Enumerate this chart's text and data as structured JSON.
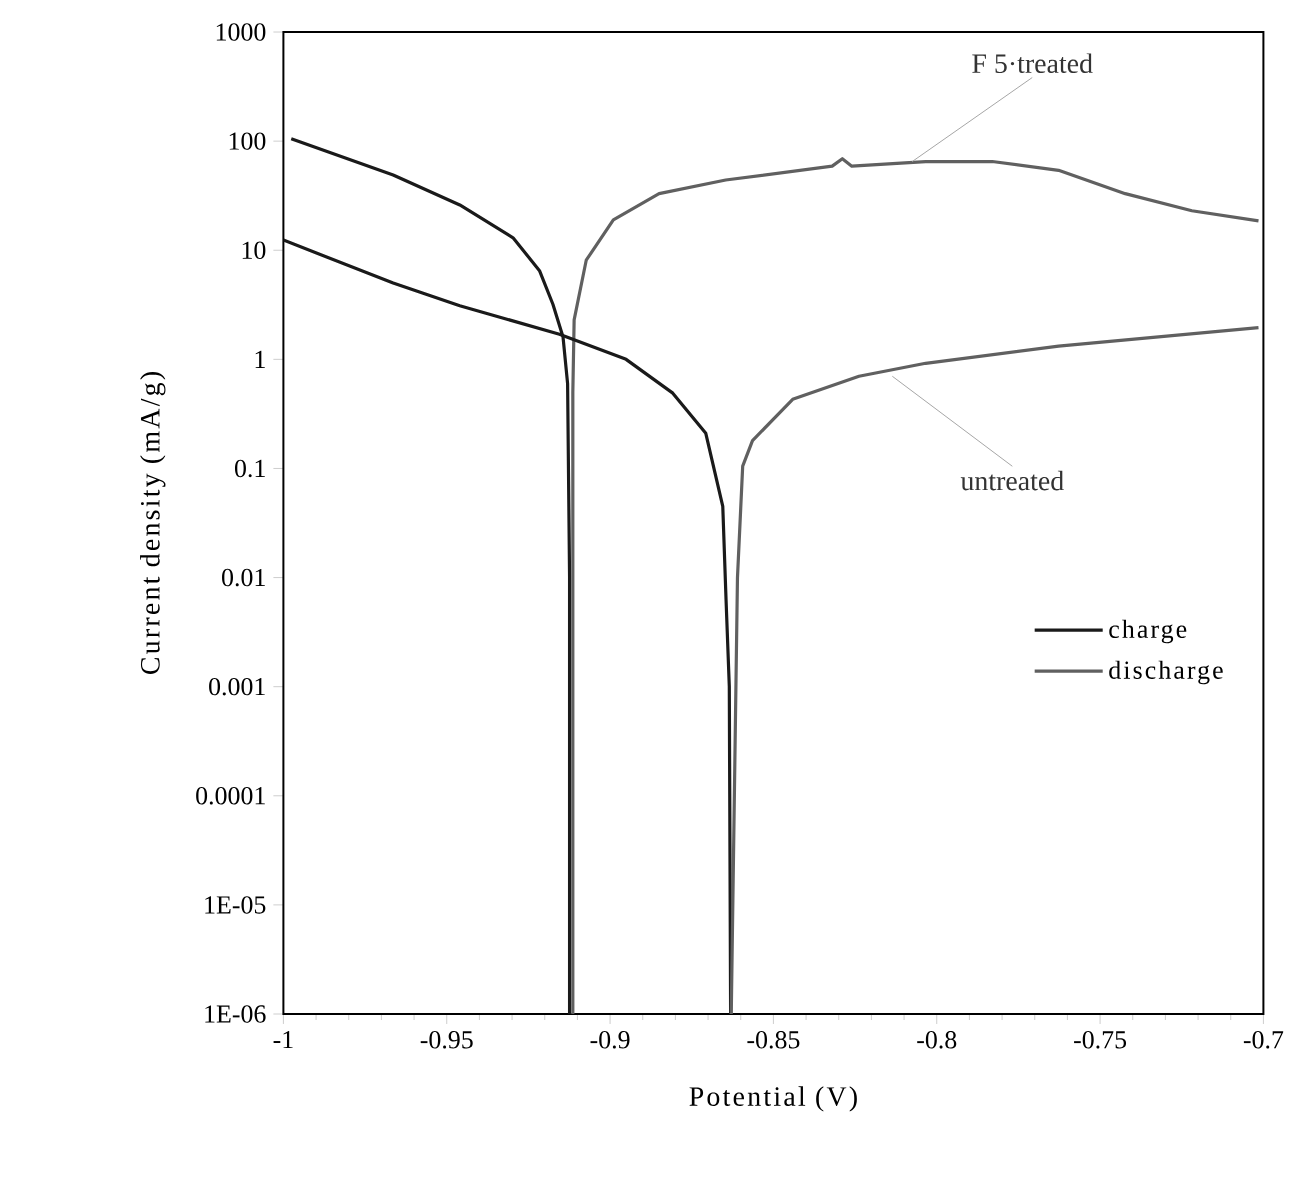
{
  "chart_data": {
    "type": "line",
    "xlabel": "Potential (V)",
    "ylabel": "Current density (mA/g)",
    "log": "y",
    "xlim": [
      -1,
      -0.7
    ],
    "ylim": [
      1e-06,
      1000
    ],
    "xticks": [
      -1,
      -0.95,
      -0.9,
      -0.85,
      -0.8,
      -0.75,
      -0.7
    ],
    "yticks": [
      {
        "value": 1e-06,
        "label": "1E-06"
      },
      {
        "value": 1e-05,
        "label": "1E-05"
      },
      0.0001,
      0.001,
      0.01,
      0.1,
      1,
      10,
      100,
      1000
    ],
    "legend": "right",
    "grid": false,
    "marker": "none",
    "line_style": "solid",
    "series": [
      {
        "name": "charge",
        "color": "#1a1a1a",
        "x": [
          -0.9976,
          -0.9664,
          -0.946,
          -0.9297,
          -0.9216,
          -0.9175,
          -0.9144,
          -0.913,
          -0.9124,
          -0.9124
        ],
        "values": [
          105,
          49,
          26,
          13,
          6.5,
          3.2,
          1.6,
          0.6,
          0.01,
          1e-06
        ]
      },
      {
        "name": "discharge",
        "color": "#606060",
        "x": [
          -0.9114,
          -0.9114,
          -0.911,
          -0.9073,
          -0.899,
          -0.885,
          -0.8646,
          -0.832,
          -0.8289,
          -0.826,
          -0.8034,
          -0.783,
          -0.7627,
          -0.7423,
          -0.7219,
          -0.7015
        ],
        "values": [
          1e-06,
          0.5,
          2.3,
          8.1,
          19,
          33,
          44,
          59,
          69,
          59,
          65,
          65,
          54,
          33,
          23,
          18.6
        ]
      },
      {
        "color": "#1a1a1a",
        "x": [
          -1,
          -0.9664,
          -0.946,
          -0.9155,
          -0.8951,
          -0.8808,
          -0.8707,
          -0.8655,
          -0.8645,
          -0.8635,
          -0.8631
        ],
        "values": [
          12.4,
          5,
          3.1,
          1.7,
          1.0,
          0.49,
          0.21,
          0.045,
          0.0063,
          0.001,
          1e-06
        ]
      },
      {
        "color": "#606060",
        "x": [
          -0.8629,
          -0.861,
          -0.8594,
          -0.8564,
          -0.8441,
          -0.8238,
          -0.8034,
          -0.7627,
          -0.7015
        ],
        "values": [
          1e-06,
          0.01,
          0.105,
          0.18,
          0.43,
          0.7,
          0.92,
          1.32,
          1.95
        ]
      }
    ],
    "annotations": [
      {
        "text": "F 5·treated",
        "x": -0.8075,
        "y": 65
      },
      {
        "text": "untreated",
        "x": -0.8136,
        "y": 0.7
      }
    ]
  }
}
